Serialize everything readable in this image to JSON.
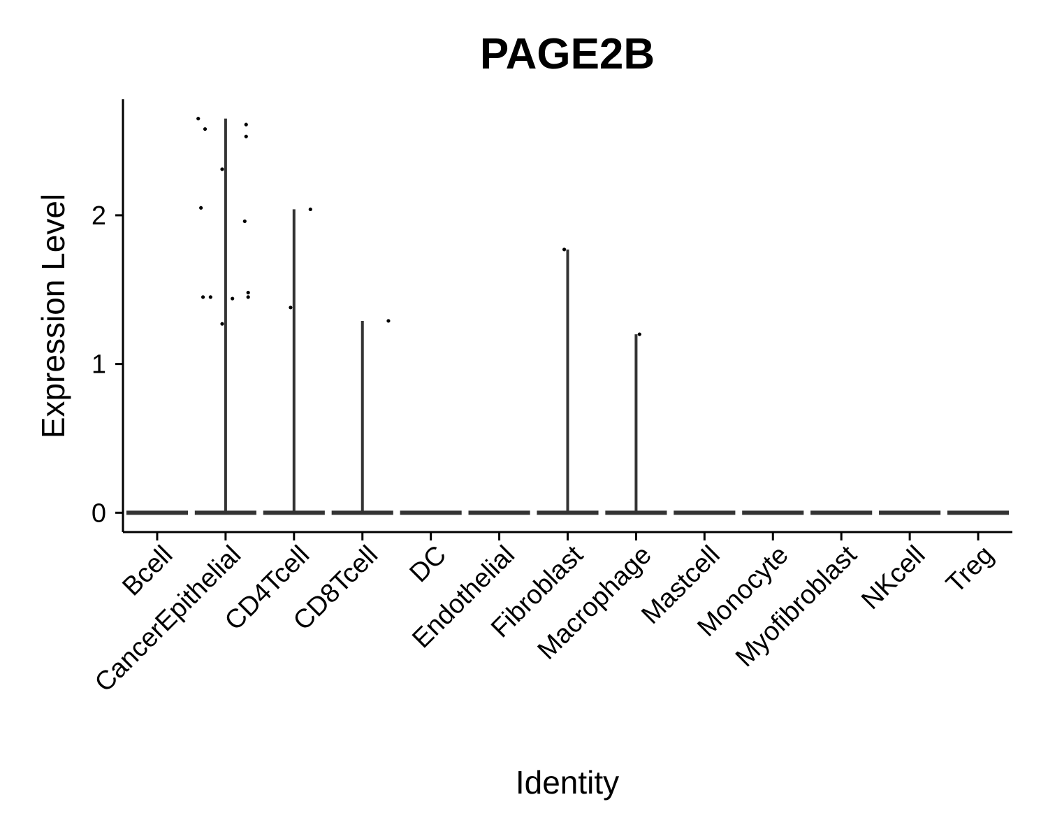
{
  "chart_data": {
    "type": "violin",
    "title": "PAGE2B",
    "xlabel": "Identity",
    "ylabel": "Expression Level",
    "ylim": [
      -0.13,
      2.78
    ],
    "yticks": [
      0,
      1,
      2
    ],
    "grid": false,
    "legend": "none",
    "colors": {
      "violin": "#333333",
      "point": "#000000",
      "axis": "#000000"
    },
    "categories": [
      "Bcell",
      "CancerEpithelial",
      "CD4Tcell",
      "CD8Tcell",
      "DC",
      "Endothelial",
      "Fibroblast",
      "Macrophage",
      "Mastcell",
      "Monocyte",
      "Myofibroblast",
      "NKcell",
      "Treg"
    ],
    "violin_max": [
      0,
      2.65,
      2.04,
      1.29,
      0,
      0,
      1.77,
      1.2,
      0,
      0,
      0,
      0,
      0
    ],
    "points": [
      {
        "category": "CancerEpithelial",
        "jitter": -0.4,
        "y": 2.65
      },
      {
        "category": "CancerEpithelial",
        "jitter": -0.3,
        "y": 2.58
      },
      {
        "category": "CancerEpithelial",
        "jitter": 0.3,
        "y": 2.61
      },
      {
        "category": "CancerEpithelial",
        "jitter": 0.3,
        "y": 2.53
      },
      {
        "category": "CancerEpithelial",
        "jitter": -0.05,
        "y": 2.31
      },
      {
        "category": "CancerEpithelial",
        "jitter": -0.36,
        "y": 2.05
      },
      {
        "category": "CancerEpithelial",
        "jitter": 0.28,
        "y": 1.96
      },
      {
        "category": "CancerEpithelial",
        "jitter": 0.33,
        "y": 1.48
      },
      {
        "category": "CancerEpithelial",
        "jitter": -0.33,
        "y": 1.45
      },
      {
        "category": "CancerEpithelial",
        "jitter": -0.22,
        "y": 1.45
      },
      {
        "category": "CancerEpithelial",
        "jitter": 0.1,
        "y": 1.44
      },
      {
        "category": "CancerEpithelial",
        "jitter": 0.33,
        "y": 1.45
      },
      {
        "category": "CancerEpithelial",
        "jitter": -0.05,
        "y": 1.27
      },
      {
        "category": "CD4Tcell",
        "jitter": 0.24,
        "y": 2.04
      },
      {
        "category": "CD4Tcell",
        "jitter": -0.05,
        "y": 1.38
      },
      {
        "category": "CD8Tcell",
        "jitter": 0.38,
        "y": 1.29
      },
      {
        "category": "Fibroblast",
        "jitter": -0.05,
        "y": 1.77
      },
      {
        "category": "Macrophage",
        "jitter": 0.05,
        "y": 1.2
      }
    ]
  }
}
